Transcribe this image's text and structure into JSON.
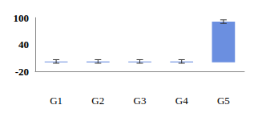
{
  "chart_data": {
    "type": "bar",
    "categories": [
      "G1",
      "G2",
      "G3",
      "G4",
      "G5"
    ],
    "values": [
      2,
      2,
      2,
      2,
      91
    ],
    "errors": [
      4,
      4,
      4,
      4,
      4
    ],
    "color": "#6b8fe0",
    "ylim": [
      -20,
      100
    ],
    "yticks": [
      -20,
      40,
      100
    ],
    "grid": false
  }
}
